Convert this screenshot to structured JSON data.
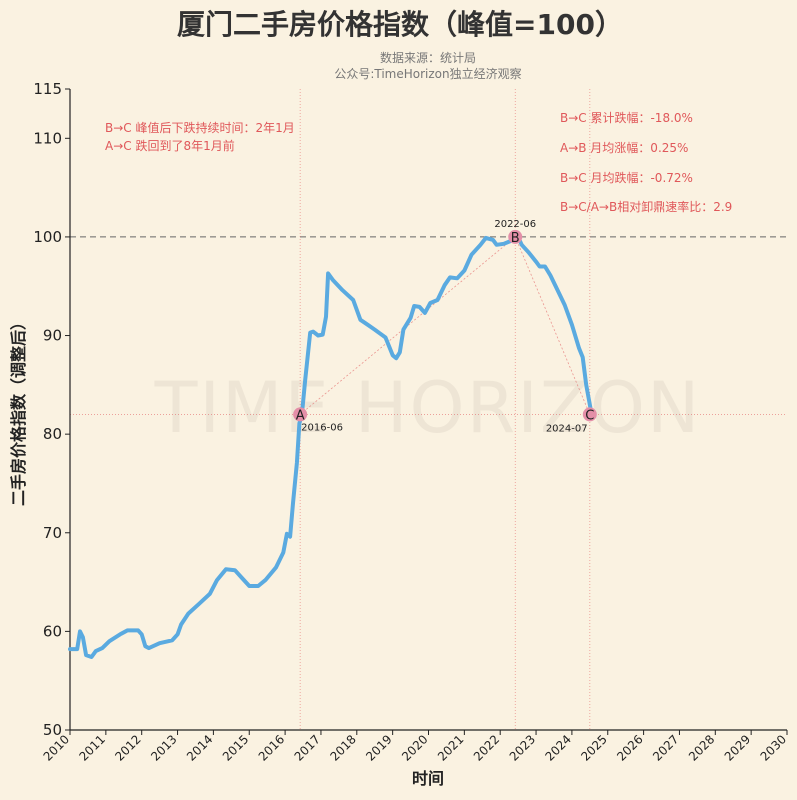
{
  "chart_data": {
    "type": "line",
    "title": "厦门二手房价格指数（峰值=100）",
    "subtitle": [
      "数据来源：统计局",
      "公众号:TimeHorizon独立经济观察"
    ],
    "xlabel": "时间",
    "ylabel": "二手房价格指数（调整后）",
    "xlim": [
      2010,
      2030
    ],
    "ylim": [
      50,
      115
    ],
    "yticks": [
      50,
      60,
      70,
      80,
      90,
      100,
      110,
      115
    ],
    "xticks": [
      "2010",
      "2011",
      "2012",
      "2013",
      "2014",
      "2015",
      "2016",
      "2017",
      "2018",
      "2019",
      "2020",
      "2021",
      "2022",
      "2023",
      "2024",
      "2025",
      "2026",
      "2027",
      "2028",
      "2029",
      "2030"
    ],
    "grid": false,
    "line_color": "#5aaae0",
    "annotation_color": "#e0585a",
    "peak_line": 100,
    "watermark": "TIME HORIZON",
    "series": [
      {
        "x": [
          2010.0,
          2010.2,
          2010.28,
          2010.36,
          2010.45,
          2010.6,
          2010.72,
          2010.9,
          2011.1,
          2011.4,
          2011.6,
          2011.9,
          2012.0,
          2012.1,
          2012.2,
          2012.5,
          2012.85,
          2013.0,
          2013.1,
          2013.3,
          2013.6,
          2013.9,
          2014.1,
          2014.35,
          2014.6,
          2014.8,
          2015.0,
          2015.25,
          2015.45,
          2015.75,
          2015.95,
          2016.05,
          2016.14,
          2016.22,
          2016.33,
          2016.4,
          2016.47,
          2016.56,
          2016.7,
          2016.78,
          2016.92,
          2017.05,
          2017.14,
          2017.2,
          2017.34,
          2017.6,
          2017.9,
          2018.1,
          2018.3,
          2018.5,
          2018.8,
          2019.0,
          2019.1,
          2019.2,
          2019.3,
          2019.5,
          2019.6,
          2019.75,
          2019.9,
          2020.05,
          2020.25,
          2020.45,
          2020.6,
          2020.8,
          2021.0,
          2021.2,
          2021.45,
          2021.6,
          2021.8,
          2021.9,
          2022.1,
          2022.3,
          2022.5,
          2022.6,
          2022.8,
          2023.0,
          2023.1,
          2023.25,
          2023.4,
          2023.6,
          2023.8,
          2024.0,
          2024.2,
          2024.3,
          2024.4,
          2024.55
        ],
        "y": [
          58.2,
          58.2,
          60.0,
          59.4,
          57.6,
          57.4,
          58.0,
          58.3,
          59.0,
          59.7,
          60.1,
          60.1,
          59.7,
          58.5,
          58.3,
          58.8,
          59.1,
          59.7,
          60.7,
          61.8,
          62.8,
          63.8,
          65.2,
          66.3,
          66.2,
          65.4,
          64.6,
          64.6,
          65.2,
          66.5,
          68.0,
          69.9,
          69.6,
          73.0,
          77.1,
          81.1,
          82.0,
          85.5,
          90.3,
          90.4,
          90.0,
          90.1,
          91.9,
          96.3,
          95.6,
          94.6,
          93.6,
          91.6,
          91.1,
          90.6,
          89.8,
          88.0,
          87.7,
          88.3,
          90.6,
          91.8,
          93.0,
          92.9,
          92.3,
          93.3,
          93.6,
          95.1,
          95.9,
          95.8,
          96.6,
          98.2,
          99.2,
          99.9,
          99.7,
          99.2,
          99.3,
          99.6,
          100.0,
          99.2,
          98.4,
          97.5,
          97.0,
          97.0,
          96.1,
          94.6,
          93.1,
          91.1,
          88.7,
          87.8,
          85.0,
          82.0
        ]
      }
    ],
    "points": [
      {
        "label": "A",
        "date": "2016-06",
        "x": 2016.42,
        "y": 82.0
      },
      {
        "label": "B",
        "date": "2022-06",
        "x": 2022.42,
        "y": 100.0
      },
      {
        "label": "C",
        "date": "2024-07",
        "x": 2024.5,
        "y": 82.0
      }
    ],
    "annotations_left": [
      "B→C 峰值后下跌持续时间：2年1月",
      "A→C 跌回到了8年1月前"
    ],
    "annotations_right": [
      "B→C 累计跌幅：-18.0%",
      "A→B 月均涨幅：0.25%",
      "B→C 月均跌幅：-0.72%",
      "B→C/A→B相对卸鼎速率比：2.9"
    ]
  }
}
